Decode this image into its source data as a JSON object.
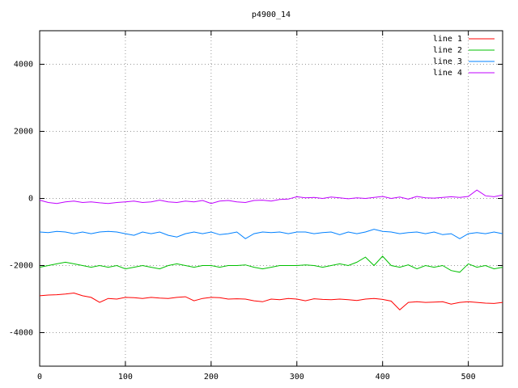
{
  "chart_data": {
    "type": "line",
    "title": "p4900_14",
    "x": [
      0,
      10,
      20,
      30,
      40,
      50,
      60,
      70,
      80,
      90,
      100,
      110,
      120,
      130,
      140,
      150,
      160,
      170,
      180,
      190,
      200,
      210,
      220,
      230,
      240,
      250,
      260,
      270,
      280,
      290,
      300,
      310,
      320,
      330,
      340,
      350,
      360,
      370,
      380,
      390,
      400,
      410,
      420,
      430,
      440,
      450,
      460,
      470,
      480,
      490,
      500,
      510,
      520,
      530,
      540
    ],
    "series": [
      {
        "name": "line 1",
        "color": "#ff0000",
        "values": [
          -2900,
          -2880,
          -2870,
          -2850,
          -2820,
          -2900,
          -2950,
          -3100,
          -2980,
          -3000,
          -2950,
          -2960,
          -2980,
          -2950,
          -2970,
          -2980,
          -2950,
          -2930,
          -3050,
          -2980,
          -2950,
          -2960,
          -3000,
          -2990,
          -3000,
          -3050,
          -3080,
          -3000,
          -3020,
          -2980,
          -3000,
          -3050,
          -2990,
          -3010,
          -3020,
          -3000,
          -3020,
          -3040,
          -3000,
          -2980,
          -3010,
          -3060,
          -3320,
          -3100,
          -3080,
          -3100,
          -3090,
          -3080,
          -3150,
          -3100,
          -3080,
          -3100,
          -3120,
          -3130,
          -3100
        ]
      },
      {
        "name": "line 2",
        "color": "#00c000",
        "values": [
          -2050,
          -2000,
          -1950,
          -1900,
          -1950,
          -2000,
          -2050,
          -2000,
          -2050,
          -2000,
          -2100,
          -2050,
          -2000,
          -2050,
          -2100,
          -2000,
          -1950,
          -2000,
          -2050,
          -2000,
          -2000,
          -2050,
          -2000,
          -2000,
          -1980,
          -2050,
          -2100,
          -2050,
          -2000,
          -2000,
          -2000,
          -1980,
          -2000,
          -2050,
          -2000,
          -1950,
          -2000,
          -1900,
          -1750,
          -2000,
          -1720,
          -2000,
          -2050,
          -1980,
          -2100,
          -2000,
          -2050,
          -2000,
          -2150,
          -2200,
          -1950,
          -2050,
          -2000,
          -2100,
          -2050
        ]
      },
      {
        "name": "line 3",
        "color": "#0080ff",
        "values": [
          -1000,
          -1020,
          -980,
          -1000,
          -1050,
          -1000,
          -1050,
          -1000,
          -980,
          -1000,
          -1050,
          -1100,
          -1000,
          -1050,
          -1000,
          -1100,
          -1150,
          -1050,
          -1000,
          -1050,
          -1000,
          -1080,
          -1050,
          -1000,
          -1200,
          -1050,
          -1000,
          -1020,
          -1000,
          -1050,
          -1000,
          -1000,
          -1050,
          -1020,
          -1000,
          -1080,
          -1000,
          -1050,
          -1000,
          -920,
          -980,
          -1000,
          -1050,
          -1020,
          -1000,
          -1050,
          -1000,
          -1080,
          -1050,
          -1200,
          -1050,
          -1020,
          -1050,
          -1000,
          -1050
        ]
      },
      {
        "name": "line 4",
        "color": "#c000ff",
        "values": [
          -50,
          -120,
          -150,
          -100,
          -80,
          -120,
          -100,
          -130,
          -150,
          -120,
          -100,
          -80,
          -120,
          -100,
          -50,
          -100,
          -120,
          -80,
          -100,
          -60,
          -150,
          -80,
          -60,
          -100,
          -120,
          -60,
          -50,
          -80,
          -30,
          -20,
          50,
          20,
          30,
          0,
          40,
          20,
          -10,
          20,
          0,
          30,
          60,
          0,
          40,
          -20,
          60,
          20,
          10,
          30,
          50,
          30,
          60,
          250,
          80,
          50,
          100
        ]
      }
    ],
    "xlim": [
      0,
      540
    ],
    "ylim": [
      -5000,
      5000
    ],
    "xticks": [
      0,
      100,
      200,
      300,
      400,
      500
    ],
    "yticks": [
      -4000,
      -2000,
      0,
      2000,
      4000
    ],
    "grid": true,
    "legend": "top-right"
  }
}
